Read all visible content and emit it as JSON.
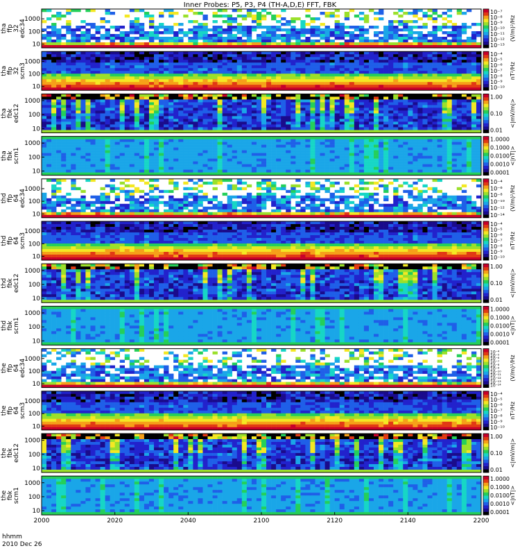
{
  "chart_data": {
    "type": "heatmap",
    "title": "Inner Probes: P5, P3, P4 (TH-A,D,E) FFT, FBK",
    "x_axis": {
      "label_line1": "hhmm",
      "label_line2": "2010 Dec 26",
      "ticks": [
        "2000",
        "2020",
        "2040",
        "2100",
        "2120",
        "2140",
        "2200"
      ],
      "tick_values": [
        0,
        20,
        40,
        60,
        80,
        100,
        120
      ],
      "range": [
        0,
        120
      ]
    },
    "panels": [
      {
        "id": "tha-ffp32-edc34",
        "label": [
          "tha",
          "ffp",
          "32",
          "edc34"
        ],
        "yticks": [
          "1000",
          "100",
          "10"
        ],
        "ytick_values": [
          1000,
          100,
          10
        ],
        "ylog": true,
        "yrange": [
          5,
          6000
        ],
        "cbar_label": "(V/m)²/Hz",
        "cbar_ticks": [
          "10⁻⁷",
          "10⁻⁸",
          "10⁻⁹",
          "10⁻¹⁰",
          "10⁻¹¹",
          "10⁻¹²",
          "10⁻¹³"
        ],
        "style": "sparse"
      },
      {
        "id": "tha-ffp32-scm3",
        "label": [
          "tha",
          "ffp",
          "32",
          "scm3"
        ],
        "yticks": [
          "1000",
          "100",
          "10"
        ],
        "ytick_values": [
          1000,
          100,
          10
        ],
        "ylog": true,
        "yrange": [
          5,
          6000
        ],
        "cbar_label": "nT²/Hz",
        "cbar_ticks": [
          "10⁻⁴",
          "10⁻⁵",
          "10⁻⁶",
          "10⁻⁷",
          "10⁻⁸",
          "10⁻⁹",
          "10⁻¹⁰"
        ],
        "style": "scm"
      },
      {
        "id": "tha-fbk-edc12",
        "label": [
          "tha",
          "fbk",
          "edc12"
        ],
        "yticks": [
          "1000",
          "100",
          "10"
        ],
        "ytick_values": [
          1000,
          100,
          10
        ],
        "ylog": true,
        "yrange": [
          5,
          3000
        ],
        "cbar_label": "<|mV/m|>",
        "cbar_ticks": [
          "1.00",
          "0.10",
          "0.01"
        ],
        "style": "fbkE"
      },
      {
        "id": "tha-fbk-scm1",
        "label": [
          "tha",
          "fbk",
          "scm1"
        ],
        "yticks": [
          "1000",
          "100",
          "10"
        ],
        "ytick_values": [
          1000,
          100,
          10
        ],
        "ylog": true,
        "yrange": [
          5,
          3000
        ],
        "cbar_label": "<|nT|>",
        "cbar_ticks": [
          "1.0000",
          "0.1000",
          "0.0100",
          "0.0010",
          "0.0001"
        ],
        "style": "fbkB"
      },
      {
        "id": "thd-ffp64-edc34",
        "label": [
          "thd",
          "ffp",
          "64",
          "edc34"
        ],
        "yticks": [
          "1000",
          "100",
          "10"
        ],
        "ytick_values": [
          1000,
          100,
          10
        ],
        "ylog": true,
        "yrange": [
          5,
          6000
        ],
        "cbar_label": "(V/m)²/Hz",
        "cbar_ticks": [
          "10⁻⁴",
          "10⁻⁶",
          "10⁻⁸",
          "10⁻¹⁰",
          "10⁻¹²",
          "10⁻¹⁴"
        ],
        "style": "sparse"
      },
      {
        "id": "thd-ffp64-scm3",
        "label": [
          "thd",
          "ffp",
          "64",
          "scm3"
        ],
        "yticks": [
          "1000",
          "100",
          "10"
        ],
        "ytick_values": [
          1000,
          100,
          10
        ],
        "ylog": true,
        "yrange": [
          5,
          6000
        ],
        "cbar_label": "nT²/Hz",
        "cbar_ticks": [
          "10⁻⁴",
          "10⁻⁵",
          "10⁻⁶",
          "10⁻⁷",
          "10⁻⁸",
          "10⁻⁹",
          "10⁻¹⁰"
        ],
        "style": "scm"
      },
      {
        "id": "thd-fbk-edc12",
        "label": [
          "thd",
          "fbk",
          "edc12"
        ],
        "yticks": [
          "1000",
          "100",
          "10"
        ],
        "ytick_values": [
          1000,
          100,
          10
        ],
        "ylog": true,
        "yrange": [
          5,
          3000
        ],
        "cbar_label": "<|mV/m|>",
        "cbar_ticks": [
          "1.00",
          "0.10",
          "0.01"
        ],
        "style": "fbkE"
      },
      {
        "id": "thd-fbk-scm1",
        "label": [
          "thd",
          "fbk",
          "scm1"
        ],
        "yticks": [
          "1000",
          "100",
          "10"
        ],
        "ytick_values": [
          1000,
          100,
          10
        ],
        "ylog": true,
        "yrange": [
          5,
          3000
        ],
        "cbar_label": "<|nT|>",
        "cbar_ticks": [
          "1.0000",
          "0.1000",
          "0.0100",
          "0.0010",
          "0.0001"
        ],
        "style": "fbkB"
      },
      {
        "id": "the-ffp64-edc34",
        "label": [
          "the",
          "ffp",
          "64",
          "edc34"
        ],
        "yticks": [
          "1000",
          "100",
          "10"
        ],
        "ytick_values": [
          1000,
          100,
          10
        ],
        "ylog": true,
        "yrange": [
          5,
          6000
        ],
        "cbar_label": "(V/m)²/Hz",
        "cbar_ticks": [
          "10⁻⁴",
          "10⁻⁵",
          "10⁻⁶",
          "10⁻⁷",
          "10⁻⁸",
          "10⁻⁹",
          "10⁻¹⁰",
          "10⁻¹¹",
          "10⁻¹²",
          "10⁻¹³",
          "10⁻¹⁴"
        ],
        "style": "sparse"
      },
      {
        "id": "the-ffp64-scm3",
        "label": [
          "the",
          "ffp",
          "64",
          "scm3"
        ],
        "yticks": [
          "1000",
          "100",
          "10"
        ],
        "ytick_values": [
          1000,
          100,
          10
        ],
        "ylog": true,
        "yrange": [
          5,
          6000
        ],
        "cbar_label": "nT²/Hz",
        "cbar_ticks": [
          "10⁻⁴",
          "10⁻⁵",
          "10⁻⁶",
          "10⁻⁷",
          "10⁻⁸",
          "10⁻⁹",
          "10⁻¹⁰"
        ],
        "style": "scm"
      },
      {
        "id": "the-fbk-edc12",
        "label": [
          "the",
          "fbk",
          "edc12"
        ],
        "yticks": [
          "1000",
          "100",
          "10"
        ],
        "ytick_values": [
          1000,
          100,
          10
        ],
        "ylog": true,
        "yrange": [
          5,
          3000
        ],
        "cbar_label": "<|mV/m|>",
        "cbar_ticks": [
          "1.00",
          "0.10",
          "0.01"
        ],
        "style": "fbkE"
      },
      {
        "id": "the-fbk-scm1",
        "label": [
          "the",
          "fbk",
          "scm1"
        ],
        "yticks": [
          "1000",
          "100",
          "10"
        ],
        "ytick_values": [
          1000,
          100,
          10
        ],
        "ylog": true,
        "yrange": [
          5,
          3000
        ],
        "cbar_label": "<|nT|>",
        "cbar_ticks": [
          "1.0000",
          "0.1000",
          "0.0100",
          "0.0010",
          "0.0001"
        ],
        "style": "fbkB"
      }
    ],
    "colormap": [
      "#000000",
      "#1a0b8c",
      "#2222cc",
      "#1f5fe8",
      "#1aa6e8",
      "#17d6c6",
      "#25cf5a",
      "#9be02b",
      "#f4e823",
      "#f6a019",
      "#e23a14",
      "#c8002a"
    ]
  }
}
